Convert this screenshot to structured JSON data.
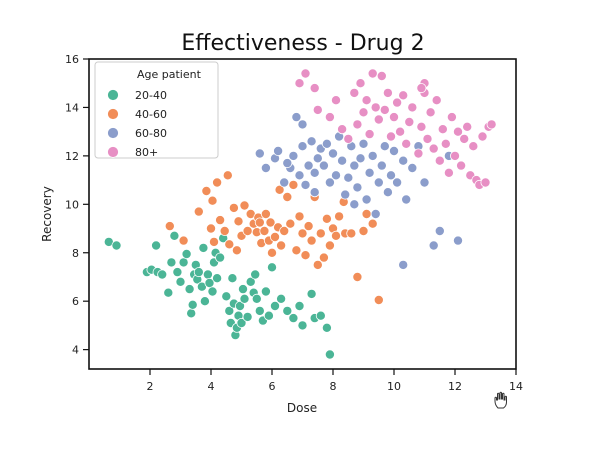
{
  "chart_data": {
    "type": "scatter",
    "title": "Effectiveness - Drug 2",
    "xlabel": "Dose",
    "ylabel": "Recovery",
    "xlim": [
      0.0,
      14.0
    ],
    "ylim": [
      3.2,
      16.0
    ],
    "xticks": [
      "2",
      "4",
      "6",
      "8",
      "10",
      "12",
      "14"
    ],
    "yticks": [
      "4",
      "6",
      "8",
      "10",
      "12",
      "14",
      "16"
    ],
    "grid": false,
    "legend": {
      "title": "Age patient",
      "placement": "top-left"
    },
    "series": [
      {
        "name": "20-40",
        "color": "#4bb596",
        "points": [
          [
            0.65,
            8.45
          ],
          [
            0.9,
            8.3
          ],
          [
            1.9,
            7.2
          ],
          [
            2.05,
            7.3
          ],
          [
            2.2,
            8.3
          ],
          [
            2.25,
            7.2
          ],
          [
            2.4,
            7.1
          ],
          [
            2.6,
            6.35
          ],
          [
            2.7,
            7.6
          ],
          [
            2.8,
            8.7
          ],
          [
            2.9,
            7.2
          ],
          [
            3.0,
            6.8
          ],
          [
            3.1,
            7.6
          ],
          [
            3.2,
            7.95
          ],
          [
            3.3,
            6.5
          ],
          [
            3.35,
            5.5
          ],
          [
            3.4,
            5.85
          ],
          [
            3.45,
            7.1
          ],
          [
            3.5,
            7.5
          ],
          [
            3.55,
            6.9
          ],
          [
            3.6,
            7.2
          ],
          [
            3.7,
            6.6
          ],
          [
            3.75,
            8.2
          ],
          [
            3.8,
            6.0
          ],
          [
            3.9,
            7.1
          ],
          [
            3.95,
            6.75
          ],
          [
            4.05,
            6.4
          ],
          [
            4.1,
            7.6
          ],
          [
            4.15,
            8.0
          ],
          [
            4.2,
            6.95
          ],
          [
            4.3,
            7.8
          ],
          [
            4.4,
            8.6
          ],
          [
            4.5,
            6.2
          ],
          [
            4.6,
            5.6
          ],
          [
            4.65,
            5.1
          ],
          [
            4.7,
            6.95
          ],
          [
            4.75,
            5.9
          ],
          [
            4.8,
            4.6
          ],
          [
            4.85,
            4.9
          ],
          [
            4.9,
            5.4
          ],
          [
            4.95,
            5.8
          ],
          [
            5.0,
            5.1
          ],
          [
            5.05,
            6.5
          ],
          [
            5.1,
            6.1
          ],
          [
            5.2,
            5.35
          ],
          [
            5.3,
            6.8
          ],
          [
            5.4,
            6.35
          ],
          [
            5.45,
            7.1
          ],
          [
            5.5,
            6.1
          ],
          [
            5.6,
            5.6
          ],
          [
            5.7,
            5.2
          ],
          [
            5.8,
            6.4
          ],
          [
            5.9,
            5.4
          ],
          [
            6.0,
            7.4
          ],
          [
            6.1,
            5.8
          ],
          [
            6.3,
            6.1
          ],
          [
            6.5,
            5.6
          ],
          [
            6.7,
            5.3
          ],
          [
            6.9,
            5.8
          ],
          [
            7.0,
            5.0
          ],
          [
            7.3,
            6.3
          ],
          [
            7.4,
            5.3
          ],
          [
            7.6,
            5.4
          ],
          [
            7.8,
            4.9
          ],
          [
            7.9,
            3.8
          ]
        ]
      },
      {
        "name": "40-60",
        "color": "#f18d58",
        "points": [
          [
            2.65,
            9.1
          ],
          [
            3.1,
            8.5
          ],
          [
            3.6,
            9.7
          ],
          [
            3.85,
            10.55
          ],
          [
            4.0,
            9.0
          ],
          [
            4.05,
            10.15
          ],
          [
            4.1,
            8.45
          ],
          [
            4.2,
            10.9
          ],
          [
            4.3,
            9.35
          ],
          [
            4.45,
            8.9
          ],
          [
            4.55,
            11.2
          ],
          [
            4.6,
            8.35
          ],
          [
            4.75,
            9.85
          ],
          [
            4.85,
            8.1
          ],
          [
            4.9,
            9.3
          ],
          [
            5.0,
            8.7
          ],
          [
            5.1,
            9.95
          ],
          [
            5.2,
            8.9
          ],
          [
            5.3,
            9.6
          ],
          [
            5.4,
            9.2
          ],
          [
            5.5,
            8.85
          ],
          [
            5.55,
            9.45
          ],
          [
            5.6,
            9.25
          ],
          [
            5.65,
            8.4
          ],
          [
            5.75,
            8.9
          ],
          [
            5.8,
            9.6
          ],
          [
            5.9,
            8.5
          ],
          [
            5.95,
            9.25
          ],
          [
            6.0,
            8.0
          ],
          [
            6.1,
            8.65
          ],
          [
            6.2,
            9.05
          ],
          [
            6.25,
            10.6
          ],
          [
            6.3,
            8.3
          ],
          [
            6.4,
            8.9
          ],
          [
            6.5,
            10.3
          ],
          [
            6.6,
            9.2
          ],
          [
            6.7,
            10.8
          ],
          [
            6.8,
            8.1
          ],
          [
            6.9,
            9.5
          ],
          [
            7.0,
            8.8
          ],
          [
            7.1,
            7.9
          ],
          [
            7.2,
            9.1
          ],
          [
            7.3,
            8.5
          ],
          [
            7.4,
            10.3
          ],
          [
            7.5,
            7.5
          ],
          [
            7.6,
            8.8
          ],
          [
            7.7,
            7.8
          ],
          [
            7.8,
            9.4
          ],
          [
            7.9,
            8.3
          ],
          [
            8.0,
            9.0
          ],
          [
            8.1,
            8.7
          ],
          [
            8.2,
            9.5
          ],
          [
            8.35,
            10.1
          ],
          [
            8.4,
            8.8
          ],
          [
            8.6,
            8.8
          ],
          [
            8.8,
            7.0
          ],
          [
            9.0,
            8.9
          ],
          [
            9.1,
            9.6
          ],
          [
            9.3,
            9.2
          ],
          [
            9.5,
            6.05
          ]
        ]
      },
      {
        "name": "60-80",
        "color": "#8b9dcb",
        "points": [
          [
            5.6,
            12.1
          ],
          [
            5.8,
            11.5
          ],
          [
            6.1,
            11.9
          ],
          [
            6.2,
            12.2
          ],
          [
            6.4,
            10.9
          ],
          [
            6.6,
            11.5
          ],
          [
            6.7,
            12.0
          ],
          [
            6.8,
            13.6
          ],
          [
            6.9,
            11.2
          ],
          [
            7.0,
            13.3
          ],
          [
            7.0,
            12.4
          ],
          [
            7.1,
            10.8
          ],
          [
            7.2,
            11.6
          ],
          [
            7.3,
            12.6
          ],
          [
            7.4,
            10.5
          ],
          [
            7.5,
            11.9
          ],
          [
            7.6,
            12.3
          ],
          [
            7.7,
            11.6
          ],
          [
            7.8,
            12.5
          ],
          [
            7.9,
            10.9
          ],
          [
            8.0,
            12.1
          ],
          [
            8.1,
            11.2
          ],
          [
            8.2,
            12.8
          ],
          [
            8.3,
            11.8
          ],
          [
            8.4,
            10.4
          ],
          [
            8.5,
            11.1
          ],
          [
            8.6,
            12.4
          ],
          [
            8.7,
            11.6
          ],
          [
            8.8,
            10.7
          ],
          [
            8.9,
            11.9
          ],
          [
            9.0,
            12.5
          ],
          [
            9.1,
            10.2
          ],
          [
            9.2,
            11.3
          ],
          [
            9.3,
            12.0
          ],
          [
            9.4,
            9.6
          ],
          [
            9.5,
            10.9
          ],
          [
            9.6,
            11.6
          ],
          [
            9.7,
            12.4
          ],
          [
            9.8,
            10.5
          ],
          [
            9.9,
            11.2
          ],
          [
            10.0,
            12.2
          ],
          [
            10.1,
            10.9
          ],
          [
            10.3,
            11.8
          ],
          [
            10.4,
            10.2
          ],
          [
            10.6,
            11.5
          ],
          [
            10.8,
            12.4
          ],
          [
            11.0,
            10.9
          ],
          [
            11.3,
            8.3
          ],
          [
            11.5,
            8.9
          ],
          [
            11.8,
            12.0
          ],
          [
            12.1,
            8.5
          ],
          [
            10.3,
            7.5
          ],
          [
            7.4,
            11.3
          ],
          [
            8.7,
            10.0
          ],
          [
            6.5,
            11.7
          ]
        ]
      },
      {
        "name": "80+",
        "color": "#e78fc4",
        "points": [
          [
            6.9,
            15.0
          ],
          [
            7.1,
            15.4
          ],
          [
            7.4,
            14.8
          ],
          [
            7.5,
            13.9
          ],
          [
            7.9,
            13.6
          ],
          [
            8.1,
            14.3
          ],
          [
            8.3,
            13.1
          ],
          [
            8.5,
            12.7
          ],
          [
            8.7,
            14.6
          ],
          [
            8.8,
            13.3
          ],
          [
            8.9,
            15.0
          ],
          [
            9.0,
            13.8
          ],
          [
            9.1,
            14.3
          ],
          [
            9.2,
            12.9
          ],
          [
            9.3,
            15.4
          ],
          [
            9.4,
            14.0
          ],
          [
            9.5,
            13.5
          ],
          [
            9.6,
            15.3
          ],
          [
            9.7,
            13.9
          ],
          [
            9.8,
            14.6
          ],
          [
            9.9,
            12.8
          ],
          [
            10.0,
            13.6
          ],
          [
            10.1,
            14.2
          ],
          [
            10.2,
            13.0
          ],
          [
            10.3,
            14.5
          ],
          [
            10.4,
            12.5
          ],
          [
            10.5,
            13.4
          ],
          [
            10.6,
            14.0
          ],
          [
            10.8,
            12.1
          ],
          [
            10.9,
            13.2
          ],
          [
            11.0,
            14.6
          ],
          [
            11.1,
            12.7
          ],
          [
            11.2,
            13.8
          ],
          [
            11.3,
            12.3
          ],
          [
            11.4,
            14.3
          ],
          [
            11.5,
            11.8
          ],
          [
            11.6,
            13.1
          ],
          [
            11.7,
            12.5
          ],
          [
            11.8,
            11.3
          ],
          [
            11.9,
            13.6
          ],
          [
            12.0,
            12.0
          ],
          [
            12.1,
            13.0
          ],
          [
            12.2,
            11.6
          ],
          [
            12.3,
            12.7
          ],
          [
            12.4,
            13.2
          ],
          [
            12.5,
            11.2
          ],
          [
            12.6,
            12.4
          ],
          [
            12.7,
            11.0
          ],
          [
            12.8,
            10.8
          ],
          [
            12.9,
            12.8
          ],
          [
            13.0,
            10.9
          ],
          [
            13.1,
            13.2
          ],
          [
            13.2,
            13.3
          ],
          [
            11.0,
            15.0
          ],
          [
            10.9,
            14.8
          ]
        ]
      }
    ]
  }
}
